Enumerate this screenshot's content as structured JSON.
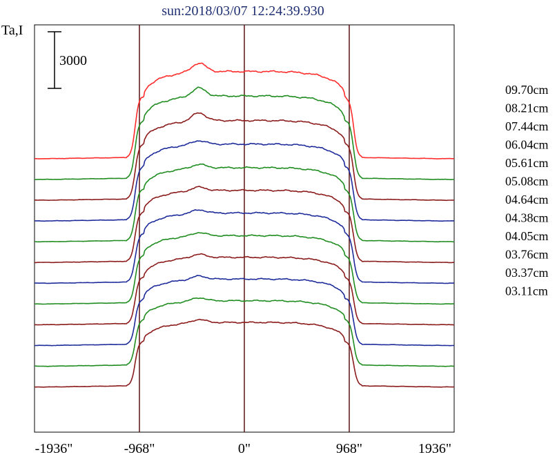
{
  "chart_data": {
    "type": "line",
    "title": "sun:2018/03/07 12:24:39.930",
    "ylabel": "Ta,I",
    "scale_bar_label": "3000",
    "x_ticks": [
      "-1936\"",
      "-968\"",
      "0\"",
      "968\"",
      "1936\""
    ],
    "x_tick_values": [
      -1936,
      -968,
      0,
      968,
      1936
    ],
    "xlim": [
      -1936,
      1936
    ],
    "vertical_lines": [
      -968,
      0,
      968
    ],
    "series": [
      {
        "name": "09.70cm",
        "color": "#ff2a2a",
        "dark": false
      },
      {
        "name": "08.21cm",
        "color": "#1f8c1f",
        "dark": false
      },
      {
        "name": "07.44cm",
        "color": "#8b1a1a",
        "dark": false
      },
      {
        "name": "06.04cm",
        "color": "#1c2a9a",
        "dark": false
      },
      {
        "name": "05.61cm",
        "color": "#1f8c1f",
        "dark": false
      },
      {
        "name": "05.08cm",
        "color": "#8b1a1a",
        "dark": false
      },
      {
        "name": "04.64cm",
        "color": "#1c2a9a",
        "dark": false
      },
      {
        "name": "04.38cm",
        "color": "#1f8c1f",
        "dark": false
      },
      {
        "name": "04.05cm",
        "color": "#8b1a1a",
        "dark": false
      },
      {
        "name": "03.76cm",
        "color": "#1c2a9a",
        "dark": false
      },
      {
        "name": "03.37cm",
        "color": "#1f8c1f",
        "dark": false
      },
      {
        "name": "03.11cm",
        "color": "#8b1a1a",
        "dark": false
      }
    ],
    "curves": [
      {
        "baseline": 0,
        "disk": 4700
      },
      {
        "baseline": -1100,
        "disk": 4500
      },
      {
        "baseline": -2200,
        "disk": 4300
      },
      {
        "baseline": -3300,
        "disk": 4150
      },
      {
        "baseline": -4400,
        "disk": 4000
      },
      {
        "baseline": -5500,
        "disk": 3900
      },
      {
        "baseline": -6600,
        "disk": 3800
      },
      {
        "baseline": -7700,
        "disk": 3700
      },
      {
        "baseline": -8800,
        "disk": 3650
      },
      {
        "baseline": -9900,
        "disk": 3600
      },
      {
        "baseline": -11000,
        "disk": 3550
      },
      {
        "baseline": -12100,
        "disk": 3500
      }
    ],
    "grid": false,
    "legend_position": "right"
  }
}
